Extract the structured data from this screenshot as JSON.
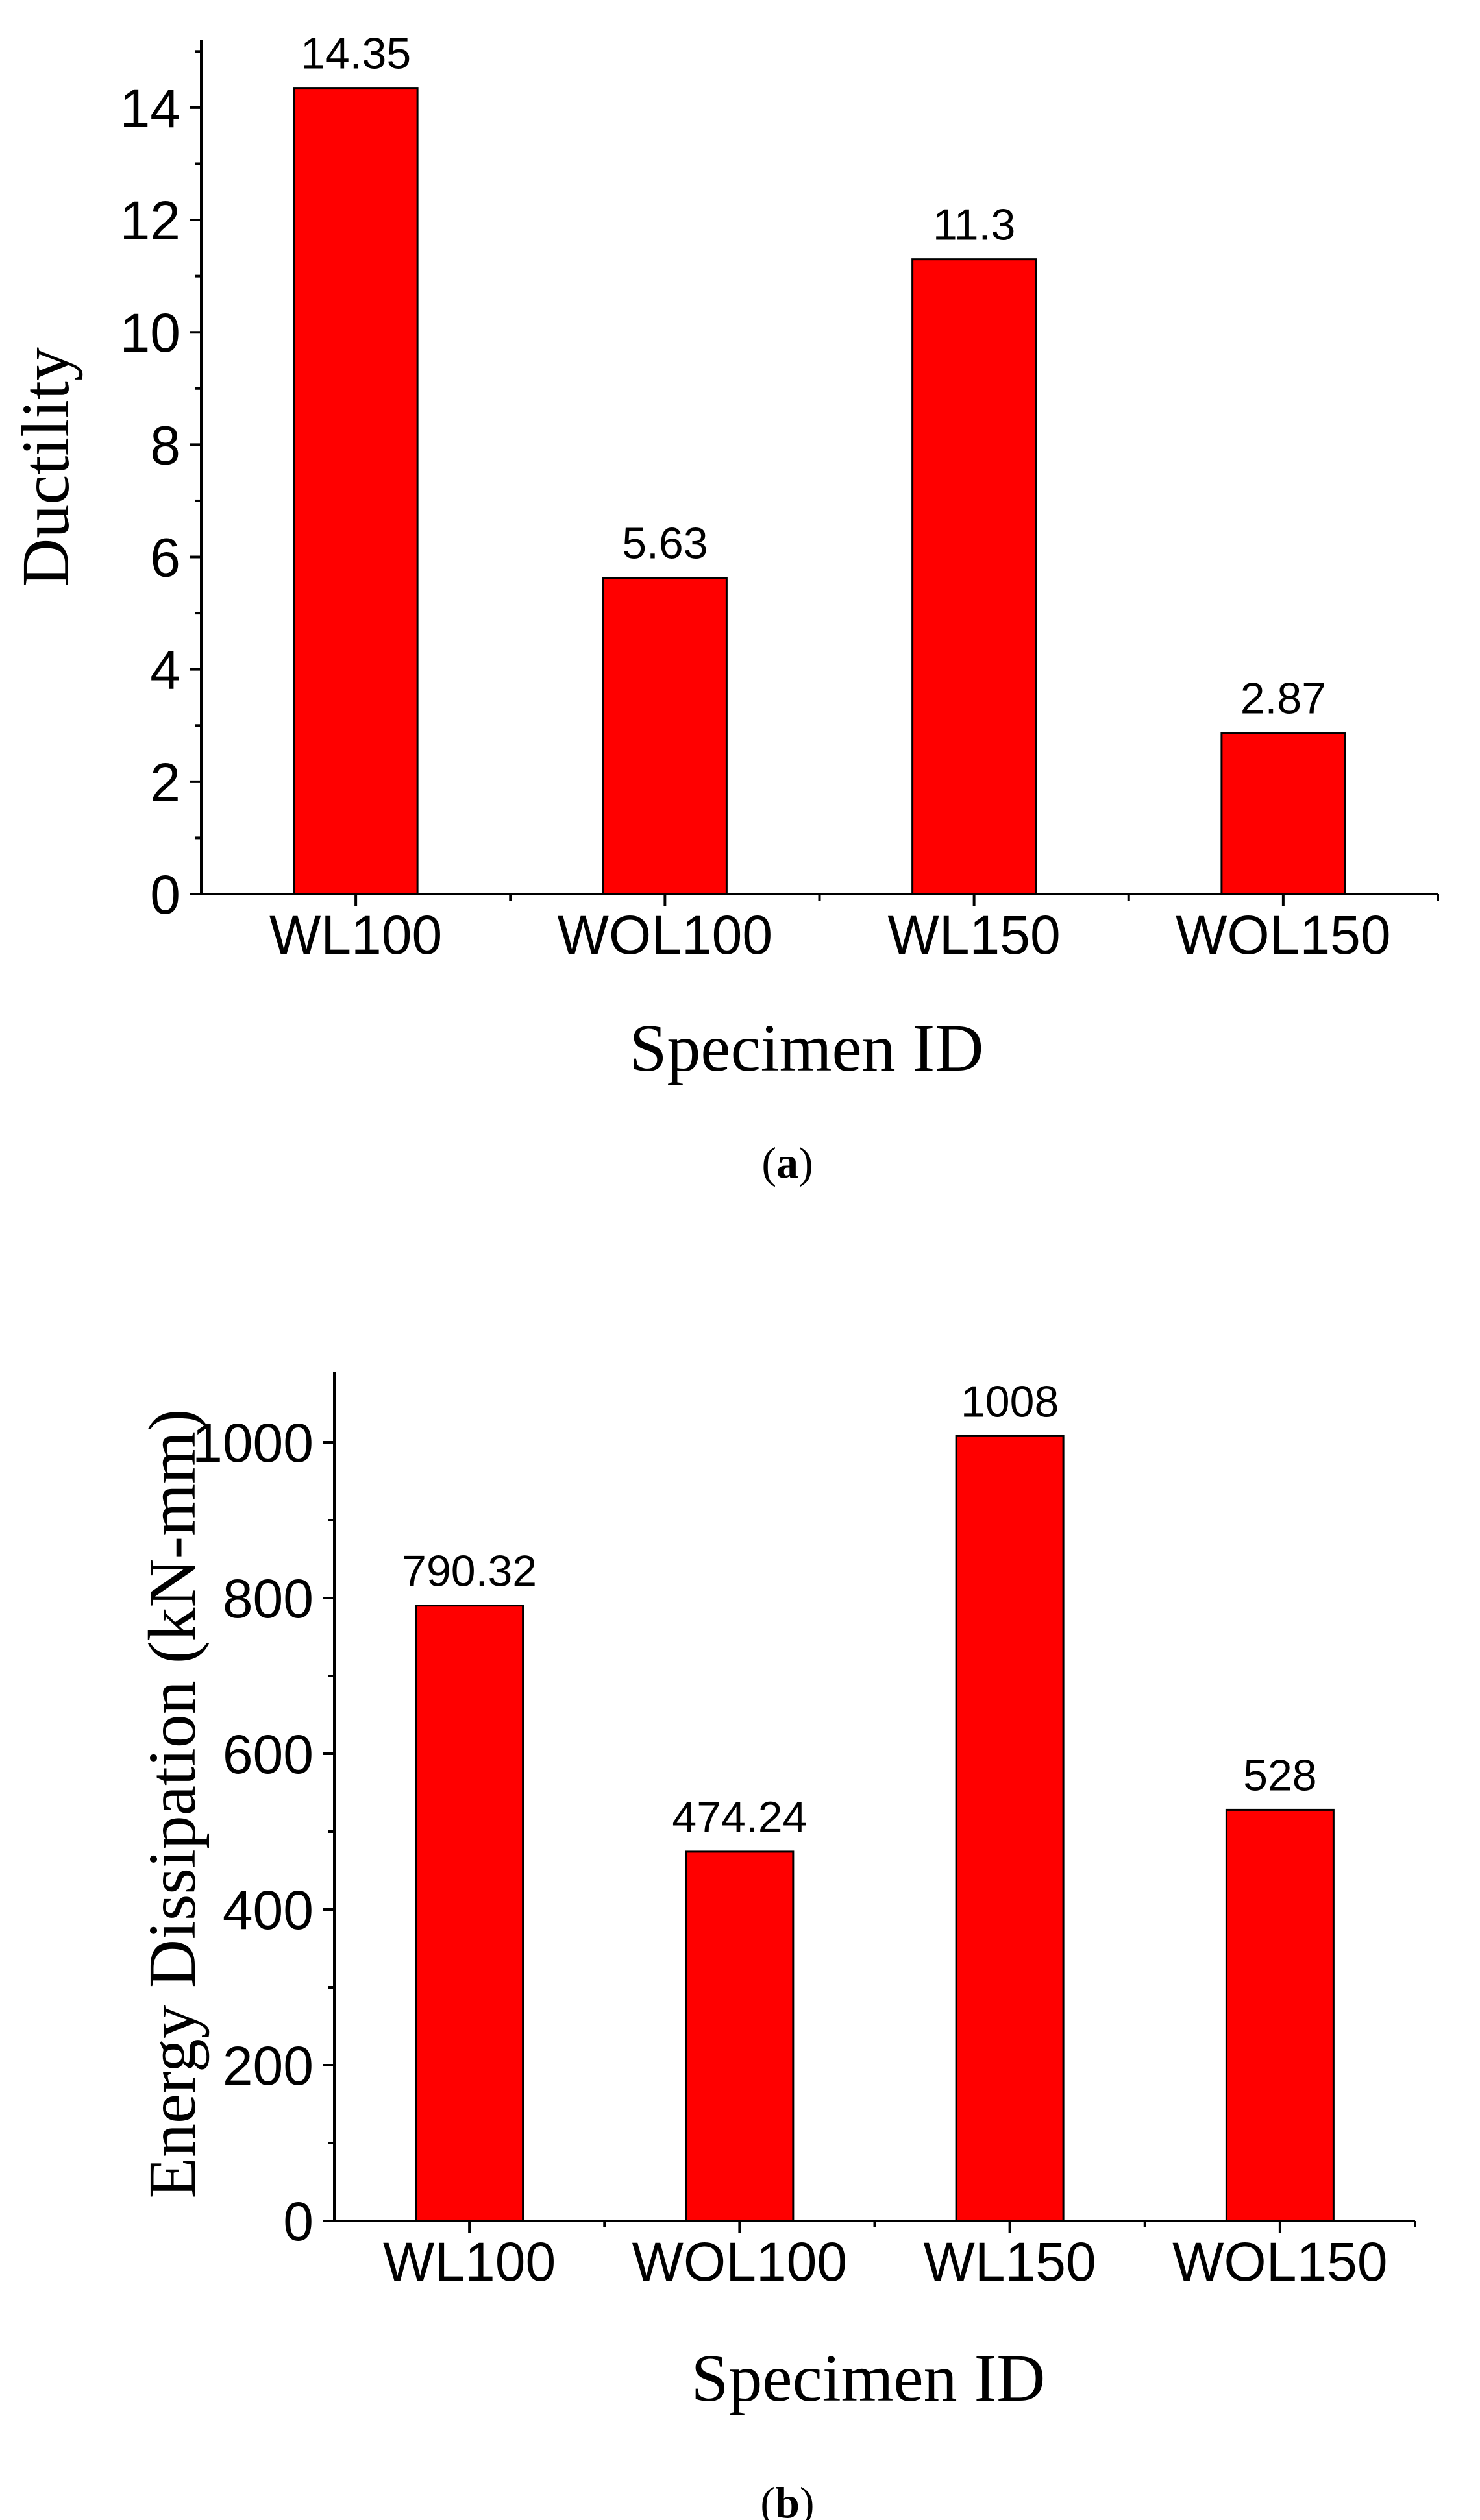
{
  "chart_data": [
    {
      "type": "bar",
      "panel": "a",
      "caption_open": "(",
      "caption_letter": "a",
      "caption_close": ")",
      "categories": [
        "WL100",
        "WOL100",
        "WL150",
        "WOL150"
      ],
      "values": [
        14.35,
        5.63,
        11.3,
        2.87
      ],
      "value_labels": [
        "14.35",
        "5.63",
        "11.3",
        "2.87"
      ],
      "title": "",
      "xlabel": "Specimen ID",
      "ylabel": "Ductility",
      "ylim": [
        0,
        15.2
      ],
      "major_ticks": [
        0,
        2,
        4,
        6,
        8,
        10,
        12,
        14
      ],
      "minor_tick_step": 1,
      "bar_color": "#FF0000",
      "grid": false
    },
    {
      "type": "bar",
      "panel": "b",
      "caption_open": "(",
      "caption_letter": "b",
      "caption_close": ")",
      "categories": [
        "WL100",
        "WOL100",
        "WL150",
        "WOL150"
      ],
      "values": [
        790.32,
        474.24,
        1008,
        528
      ],
      "value_labels": [
        "790.32",
        "474.24",
        "1008",
        "528"
      ],
      "title": "",
      "xlabel": "Specimen ID",
      "ylabel": "Energy Dissipation (kN-mm)",
      "ylim": [
        0,
        1090
      ],
      "major_ticks": [
        0,
        200,
        400,
        600,
        800,
        1000
      ],
      "minor_tick_step": 100,
      "bar_color": "#FF0000",
      "grid": false
    }
  ]
}
